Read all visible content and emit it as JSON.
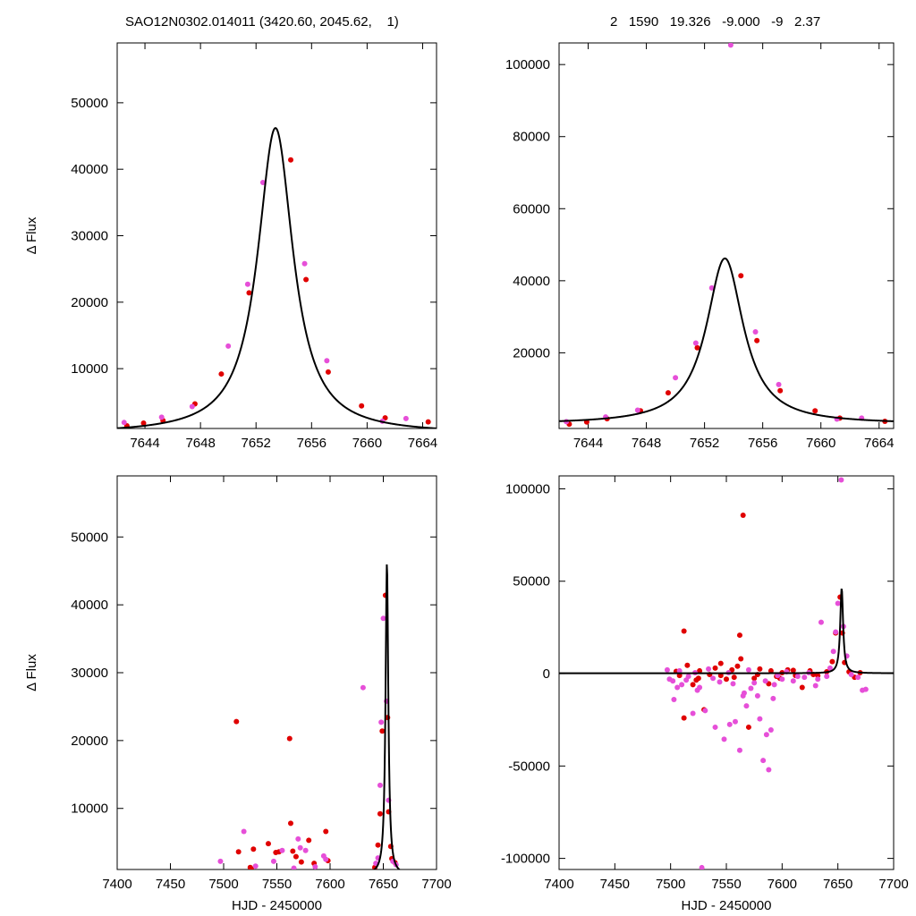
{
  "header": {
    "left": "SAO12N0302.014011 (3420.60, 2045.62,    1)",
    "right": "2   1590   19.326   -9.000   -9   2.37"
  },
  "colors": {
    "red": "#e00000",
    "magenta": "#e64fd8",
    "model": "#000000"
  },
  "model": {
    "name": "Lorentzian model",
    "peak_x": 7653.4,
    "amplitude": 46000,
    "half_width": 1.55,
    "baseline": 200
  },
  "chart_data": [
    {
      "type": "scatter",
      "title": "",
      "xlabel": "",
      "ylabel": "Δ Flux",
      "xlim": [
        7642,
        7665
      ],
      "ylim": [
        1000,
        59000
      ],
      "xticks": [
        7644,
        7648,
        7652,
        7656,
        7660,
        7664
      ],
      "yticks": [
        10000,
        20000,
        30000,
        40000,
        50000
      ],
      "xtick_labels": [
        "7644",
        "7648",
        "7652",
        "7656",
        "7660",
        "7664"
      ],
      "ytick_labels": [
        "10000",
        "20000",
        "30000",
        "40000",
        "50000"
      ],
      "series": [
        {
          "color": "red",
          "points": [
            [
              7642.7,
              1400
            ],
            [
              7643.9,
              1800
            ],
            [
              7645.3,
              2200
            ],
            [
              7647.6,
              4700
            ],
            [
              7649.5,
              9200
            ],
            [
              7651.5,
              21400
            ],
            [
              7654.5,
              41400
            ],
            [
              7655.6,
              23400
            ],
            [
              7657.2,
              9500
            ],
            [
              7659.6,
              4400
            ],
            [
              7661.3,
              2600
            ],
            [
              7664.4,
              2000
            ]
          ]
        },
        {
          "color": "magenta",
          "points": [
            [
              7642.5,
              1900
            ],
            [
              7645.2,
              2700
            ],
            [
              7647.4,
              4300
            ],
            [
              7650.0,
              13400
            ],
            [
              7651.4,
              22700
            ],
            [
              7652.5,
              38000
            ],
            [
              7655.5,
              25800
            ],
            [
              7657.1,
              11200
            ],
            [
              7661.1,
              2100
            ],
            [
              7662.8,
              2500
            ]
          ]
        }
      ]
    },
    {
      "type": "scatter",
      "title": "",
      "xlabel": "",
      "ylabel": "",
      "xlim": [
        7642,
        7665
      ],
      "ylim": [
        -1000,
        106000
      ],
      "xticks": [
        7644,
        7648,
        7652,
        7656,
        7660,
        7664
      ],
      "yticks": [
        20000,
        40000,
        60000,
        80000,
        100000
      ],
      "xtick_labels": [
        "7644",
        "7648",
        "7652",
        "7656",
        "7660",
        "7664"
      ],
      "ytick_labels": [
        "20000",
        "40000",
        "60000",
        "80000",
        "100000"
      ],
      "series": [
        {
          "color": "red",
          "points": [
            [
              7642.7,
              200
            ],
            [
              7643.9,
              800
            ],
            [
              7645.3,
              1700
            ],
            [
              7647.6,
              3900
            ],
            [
              7649.5,
              8900
            ],
            [
              7651.5,
              21400
            ],
            [
              7654.5,
              41400
            ],
            [
              7655.6,
              23400
            ],
            [
              7657.2,
              9500
            ],
            [
              7659.6,
              3900
            ],
            [
              7661.3,
              1900
            ],
            [
              7664.4,
              1000
            ]
          ]
        },
        {
          "color": "magenta",
          "points": [
            [
              7642.5,
              900
            ],
            [
              7645.2,
              2200
            ],
            [
              7647.4,
              4100
            ],
            [
              7650.0,
              13100
            ],
            [
              7651.4,
              22700
            ],
            [
              7652.5,
              38000
            ],
            [
              7653.8,
              105400
            ],
            [
              7655.5,
              25800
            ],
            [
              7657.1,
              11200
            ],
            [
              7661.1,
              1600
            ],
            [
              7662.8,
              1900
            ]
          ]
        }
      ]
    },
    {
      "type": "scatter",
      "title": "",
      "xlabel": "HJD - 2450000",
      "ylabel": "Δ Flux",
      "xlim": [
        7400,
        7700
      ],
      "ylim": [
        1000,
        59000
      ],
      "xticks": [
        7400,
        7450,
        7500,
        7550,
        7600,
        7650,
        7700
      ],
      "yticks": [
        10000,
        20000,
        30000,
        40000,
        50000
      ],
      "xtick_labels": [
        "7400",
        "7450",
        "7500",
        "7550",
        "7600",
        "7650",
        "7700"
      ],
      "ytick_labels": [
        "10000",
        "20000",
        "30000",
        "40000",
        "50000"
      ],
      "series": [
        {
          "color": "red",
          "points": [
            [
              7512,
              22800
            ],
            [
              7514,
              3600
            ],
            [
              7525,
              1300
            ],
            [
              7526,
              1100
            ],
            [
              7528,
              4000
            ],
            [
              7542,
              4800
            ],
            [
              7549,
              3500
            ],
            [
              7552,
              3600
            ],
            [
              7562,
              20300
            ],
            [
              7563,
              7800
            ],
            [
              7565,
              3700
            ],
            [
              7568,
              2900
            ],
            [
              7573,
              2100
            ],
            [
              7580,
              5300
            ],
            [
              7585,
              1900
            ],
            [
              7596,
              6600
            ],
            [
              7598,
              2300
            ],
            [
              7642,
              1300
            ],
            [
              7645,
              4600
            ],
            [
              7647,
              9200
            ],
            [
              7649,
              21400
            ],
            [
              7652,
              41400
            ],
            [
              7654,
              23400
            ],
            [
              7655,
              9500
            ],
            [
              7657,
              4400
            ],
            [
              7658,
              2600
            ],
            [
              7661,
              2000
            ]
          ]
        },
        {
          "color": "magenta",
          "points": [
            [
              7497,
              2200
            ],
            [
              7519,
              6600
            ],
            [
              7530,
              1500
            ],
            [
              7547,
              2200
            ],
            [
              7555,
              3800
            ],
            [
              7566,
              1200
            ],
            [
              7570,
              5500
            ],
            [
              7572,
              4200
            ],
            [
              7577,
              3800
            ],
            [
              7586,
              1400
            ],
            [
              7594,
              3000
            ],
            [
              7596,
              2500
            ],
            [
              7631,
              27800
            ],
            [
              7643,
              1900
            ],
            [
              7645,
              2700
            ],
            [
              7647,
              13400
            ],
            [
              7648,
              22700
            ],
            [
              7650,
              38000
            ],
            [
              7653,
              25800
            ],
            [
              7655,
              11200
            ],
            [
              7659,
              2200
            ],
            [
              7662,
              1700
            ]
          ]
        }
      ]
    },
    {
      "type": "scatter",
      "title": "",
      "xlabel": "HJD - 2450000",
      "ylabel": "",
      "xlim": [
        7400,
        7700
      ],
      "ylim": [
        -106000,
        107000
      ],
      "xticks": [
        7400,
        7450,
        7500,
        7550,
        7600,
        7650,
        7700
      ],
      "yticks": [
        -100000,
        -50000,
        0,
        50000,
        100000
      ],
      "xtick_labels": [
        "7400",
        "7450",
        "7500",
        "7550",
        "7600",
        "7650",
        "7700"
      ],
      "ytick_labels": [
        "-100000",
        "-50000",
        "0",
        "50000",
        "100000"
      ],
      "series": [
        {
          "color": "red",
          "points": [
            [
              7512,
              23000
            ],
            [
              7515,
              4500
            ],
            [
              7520,
              -6000
            ],
            [
              7523,
              -3500
            ],
            [
              7526,
              1500
            ],
            [
              7530,
              -19500
            ],
            [
              7512,
              -24000
            ],
            [
              7535,
              -500
            ],
            [
              7540,
              3000
            ],
            [
              7545,
              5500
            ],
            [
              7550,
              -3000
            ],
            [
              7555,
              2000
            ],
            [
              7560,
              4000
            ],
            [
              7562,
              20800
            ],
            [
              7565,
              85700
            ],
            [
              7563,
              8000
            ],
            [
              7570,
              -29000
            ],
            [
              7575,
              -2500
            ],
            [
              7580,
              2500
            ],
            [
              7588,
              -5500
            ],
            [
              7595,
              -1500
            ],
            [
              7600,
              500
            ],
            [
              7605,
              2000
            ],
            [
              7612,
              -1000
            ],
            [
              7618,
              -7500
            ],
            [
              7625,
              1500
            ],
            [
              7632,
              -1000
            ],
            [
              7640,
              1000
            ],
            [
              7645,
              6500
            ],
            [
              7648,
              22000
            ],
            [
              7652,
              41400
            ],
            [
              7654,
              22000
            ],
            [
              7656,
              6000
            ],
            [
              7660,
              1000
            ],
            [
              7665,
              -2000
            ],
            [
              7670,
              500
            ],
            [
              7505,
              1200
            ],
            [
              7508,
              -1000
            ],
            [
              7525,
              -2500
            ],
            [
              7545,
              -1000
            ],
            [
              7557,
              -2000
            ],
            [
              7578,
              -500
            ],
            [
              7590,
              1500
            ],
            [
              7598,
              -2500
            ],
            [
              7610,
              1800
            ],
            [
              7628,
              -500
            ]
          ]
        },
        {
          "color": "magenta",
          "points": [
            [
              7497,
              2000
            ],
            [
              7499,
              -3000
            ],
            [
              7503,
              -14000
            ],
            [
              7506,
              -7500
            ],
            [
              7510,
              -6000
            ],
            [
              7516,
              -1500
            ],
            [
              7520,
              -21500
            ],
            [
              7524,
              -9000
            ],
            [
              7528,
              -105000
            ],
            [
              7531,
              -20000
            ],
            [
              7540,
              -29000
            ],
            [
              7548,
              -35500
            ],
            [
              7553,
              -27500
            ],
            [
              7558,
              -26000
            ],
            [
              7562,
              -41500
            ],
            [
              7565,
              -12000
            ],
            [
              7568,
              -17500
            ],
            [
              7572,
              -8000
            ],
            [
              7575,
              -5000
            ],
            [
              7580,
              -24500
            ],
            [
              7583,
              -47000
            ],
            [
              7586,
              -33000
            ],
            [
              7588,
              -52000
            ],
            [
              7590,
              -30500
            ],
            [
              7593,
              -6000
            ],
            [
              7600,
              -3000
            ],
            [
              7610,
              -4000
            ],
            [
              7620,
              -2000
            ],
            [
              7630,
              -6500
            ],
            [
              7635,
              27800
            ],
            [
              7640,
              -1500
            ],
            [
              7643,
              3000
            ],
            [
              7646,
              12000
            ],
            [
              7648,
              22500
            ],
            [
              7650,
              38000
            ],
            [
              7653,
              104800
            ],
            [
              7655,
              25500
            ],
            [
              7658,
              9500
            ],
            [
              7662,
              -500
            ],
            [
              7668,
              -2000
            ],
            [
              7672,
              -9000
            ],
            [
              7675,
              -8500
            ],
            [
              7502,
              -4000
            ],
            [
              7508,
              1500
            ],
            [
              7514,
              -3500
            ],
            [
              7522,
              500
            ],
            [
              7526,
              -7500
            ],
            [
              7534,
              2500
            ],
            [
              7538,
              -2500
            ],
            [
              7544,
              -4500
            ],
            [
              7552,
              500
            ],
            [
              7556,
              -5500
            ],
            [
              7566,
              -10500
            ],
            [
              7570,
              2000
            ],
            [
              7578,
              -12000
            ],
            [
              7585,
              -4000
            ],
            [
              7592,
              -13500
            ],
            [
              7596,
              -1000
            ],
            [
              7604,
              1000
            ],
            [
              7614,
              -1500
            ],
            [
              7624,
              500
            ],
            [
              7632,
              -3000
            ]
          ]
        }
      ]
    }
  ]
}
